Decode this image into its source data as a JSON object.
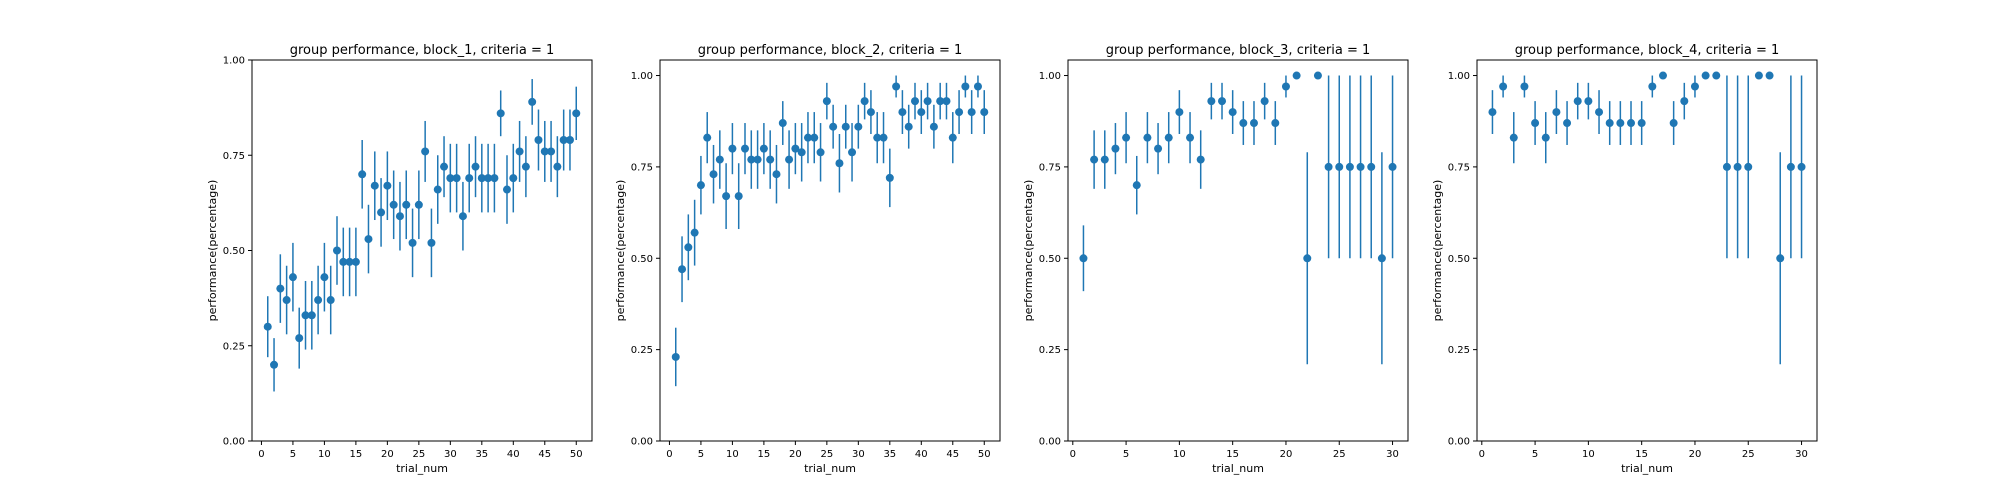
{
  "chart_data": [
    {
      "type": "scatter",
      "title": "group performance, block_1, criteria = 1",
      "xlabel": "trial_num",
      "ylabel": "performance(percentage)",
      "xlim": [
        -1.5,
        52.5
      ],
      "ylim": [
        0,
        1
      ],
      "xticks": [
        0,
        5,
        10,
        15,
        20,
        25,
        30,
        35,
        40,
        45,
        50
      ],
      "yticks": [
        "0.00",
        "0.25",
        "0.50",
        "0.75",
        "1.00"
      ],
      "color": "#1f77b4",
      "x": [
        1,
        2,
        3,
        4,
        5,
        6,
        7,
        8,
        9,
        10,
        11,
        12,
        13,
        14,
        15,
        16,
        17,
        18,
        19,
        20,
        21,
        22,
        23,
        24,
        25,
        26,
        27,
        28,
        29,
        30,
        31,
        32,
        33,
        34,
        35,
        36,
        37,
        38,
        39,
        40,
        41,
        42,
        43,
        44,
        45,
        46,
        47,
        48,
        49,
        50
      ],
      "y": [
        0.3,
        0.2,
        0.4,
        0.37,
        0.43,
        0.27,
        0.33,
        0.33,
        0.37,
        0.43,
        0.37,
        0.5,
        0.47,
        0.47,
        0.47,
        0.7,
        0.53,
        0.67,
        0.6,
        0.67,
        0.62,
        0.59,
        0.62,
        0.52,
        0.62,
        0.76,
        0.52,
        0.66,
        0.72,
        0.69,
        0.69,
        0.59,
        0.69,
        0.72,
        0.69,
        0.69,
        0.69,
        0.86,
        0.66,
        0.69,
        0.76,
        0.72,
        0.89,
        0.79,
        0.76,
        0.76,
        0.72,
        0.79,
        0.79,
        0.86
      ],
      "err": [
        0.08,
        0.07,
        0.09,
        0.09,
        0.09,
        0.08,
        0.09,
        0.09,
        0.09,
        0.09,
        0.09,
        0.09,
        0.09,
        0.09,
        0.09,
        0.09,
        0.09,
        0.09,
        0.09,
        0.09,
        0.09,
        0.09,
        0.09,
        0.09,
        0.09,
        0.08,
        0.09,
        0.09,
        0.08,
        0.09,
        0.09,
        0.09,
        0.09,
        0.08,
        0.09,
        0.09,
        0.09,
        0.06,
        0.09,
        0.09,
        0.08,
        0.08,
        0.06,
        0.08,
        0.08,
        0.08,
        0.08,
        0.08,
        0.08,
        0.07
      ]
    },
    {
      "type": "scatter",
      "title": "group performance, block_2, criteria = 1",
      "xlabel": "trial_num",
      "ylabel": "performance(percentage)",
      "xlim": [
        -1.5,
        52.5
      ],
      "ylim": [
        0,
        1.0425
      ],
      "xticks": [
        0,
        5,
        10,
        15,
        20,
        25,
        30,
        35,
        40,
        45,
        50
      ],
      "yticks": [
        "0.00",
        "0.25",
        "0.50",
        "0.75",
        "1.00"
      ],
      "color": "#1f77b4",
      "x": [
        1,
        2,
        3,
        4,
        5,
        6,
        7,
        8,
        9,
        10,
        11,
        12,
        13,
        14,
        15,
        16,
        17,
        18,
        19,
        20,
        21,
        22,
        23,
        24,
        25,
        26,
        27,
        28,
        29,
        30,
        31,
        32,
        33,
        34,
        35,
        36,
        37,
        38,
        39,
        40,
        41,
        42,
        43,
        44,
        45,
        46,
        47,
        48,
        49,
        50
      ],
      "y": [
        0.23,
        0.47,
        0.53,
        0.57,
        0.7,
        0.83,
        0.73,
        0.77,
        0.67,
        0.8,
        0.67,
        0.8,
        0.77,
        0.77,
        0.8,
        0.77,
        0.73,
        0.87,
        0.77,
        0.8,
        0.79,
        0.83,
        0.83,
        0.79,
        0.93,
        0.86,
        0.76,
        0.86,
        0.79,
        0.86,
        0.93,
        0.9,
        0.83,
        0.83,
        0.72,
        0.97,
        0.9,
        0.86,
        0.93,
        0.9,
        0.93,
        0.86,
        0.93,
        0.93,
        0.83,
        0.9,
        0.97,
        0.9,
        0.97,
        0.9
      ],
      "err": [
        0.08,
        0.09,
        0.09,
        0.09,
        0.08,
        0.07,
        0.08,
        0.08,
        0.09,
        0.07,
        0.09,
        0.07,
        0.08,
        0.08,
        0.07,
        0.08,
        0.08,
        0.06,
        0.08,
        0.07,
        0.08,
        0.07,
        0.07,
        0.08,
        0.05,
        0.06,
        0.08,
        0.06,
        0.08,
        0.06,
        0.05,
        0.06,
        0.07,
        0.07,
        0.08,
        0.03,
        0.06,
        0.06,
        0.05,
        0.06,
        0.05,
        0.06,
        0.05,
        0.05,
        0.07,
        0.06,
        0.03,
        0.06,
        0.03,
        0.06
      ]
    },
    {
      "type": "scatter",
      "title": "group performance, block_3, criteria = 1",
      "xlabel": "trial_num",
      "ylabel": "performance(percentage)",
      "xlim": [
        -0.45,
        31.45
      ],
      "ylim": [
        0,
        1.0425
      ],
      "xticks": [
        0,
        5,
        10,
        15,
        20,
        25,
        30
      ],
      "yticks": [
        "0.00",
        "0.25",
        "0.50",
        "0.75",
        "1.00"
      ],
      "color": "#1f77b4",
      "x": [
        1,
        2,
        3,
        4,
        5,
        6,
        7,
        8,
        9,
        10,
        11,
        12,
        13,
        14,
        15,
        16,
        17,
        18,
        19,
        20,
        21,
        22,
        23,
        24,
        25,
        26,
        27,
        28,
        29,
        30
      ],
      "y": [
        0.5,
        0.77,
        0.77,
        0.8,
        0.83,
        0.7,
        0.83,
        0.8,
        0.83,
        0.9,
        0.83,
        0.77,
        0.93,
        0.93,
        0.9,
        0.87,
        0.87,
        0.93,
        0.87,
        0.97,
        1.0,
        0.5,
        1.0,
        0.75,
        0.75,
        0.75,
        0.75,
        0.75,
        0.5,
        0.75
      ],
      "err": [
        0.09,
        0.08,
        0.08,
        0.07,
        0.07,
        0.08,
        0.07,
        0.07,
        0.07,
        0.06,
        0.07,
        0.08,
        0.05,
        0.05,
        0.06,
        0.06,
        0.06,
        0.05,
        0.06,
        0.03,
        0,
        0.29,
        0,
        0.25,
        0.25,
        0.25,
        0.25,
        0.25,
        0.29,
        0.25
      ]
    },
    {
      "type": "scatter",
      "title": "group performance, block_4, criteria = 1",
      "xlabel": "trial_num",
      "ylabel": "performance(percentage)",
      "xlim": [
        -0.45,
        31.45
      ],
      "ylim": [
        0,
        1.0425
      ],
      "xticks": [
        0,
        5,
        10,
        15,
        20,
        25,
        30
      ],
      "yticks": [
        "0.00",
        "0.25",
        "0.50",
        "0.75",
        "1.00"
      ],
      "color": "#1f77b4",
      "x": [
        1,
        2,
        3,
        4,
        5,
        6,
        7,
        8,
        9,
        10,
        11,
        12,
        13,
        14,
        15,
        16,
        17,
        18,
        19,
        20,
        21,
        22,
        23,
        24,
        25,
        26,
        27,
        28,
        29,
        30
      ],
      "y": [
        0.9,
        0.97,
        0.83,
        0.97,
        0.87,
        0.83,
        0.9,
        0.87,
        0.93,
        0.93,
        0.9,
        0.87,
        0.87,
        0.87,
        0.87,
        0.97,
        1.0,
        0.87,
        0.93,
        0.97,
        1.0,
        1.0,
        0.75,
        0.75,
        0.75,
        1.0,
        1.0,
        0.5,
        0.75,
        0.75
      ],
      "err": [
        0.06,
        0.03,
        0.07,
        0.03,
        0.06,
        0.07,
        0.06,
        0.06,
        0.05,
        0.05,
        0.06,
        0.06,
        0.06,
        0.06,
        0.06,
        0.03,
        0,
        0.06,
        0.05,
        0.03,
        0,
        0,
        0.25,
        0.25,
        0.25,
        0,
        0,
        0.29,
        0.25,
        0.25
      ]
    }
  ]
}
